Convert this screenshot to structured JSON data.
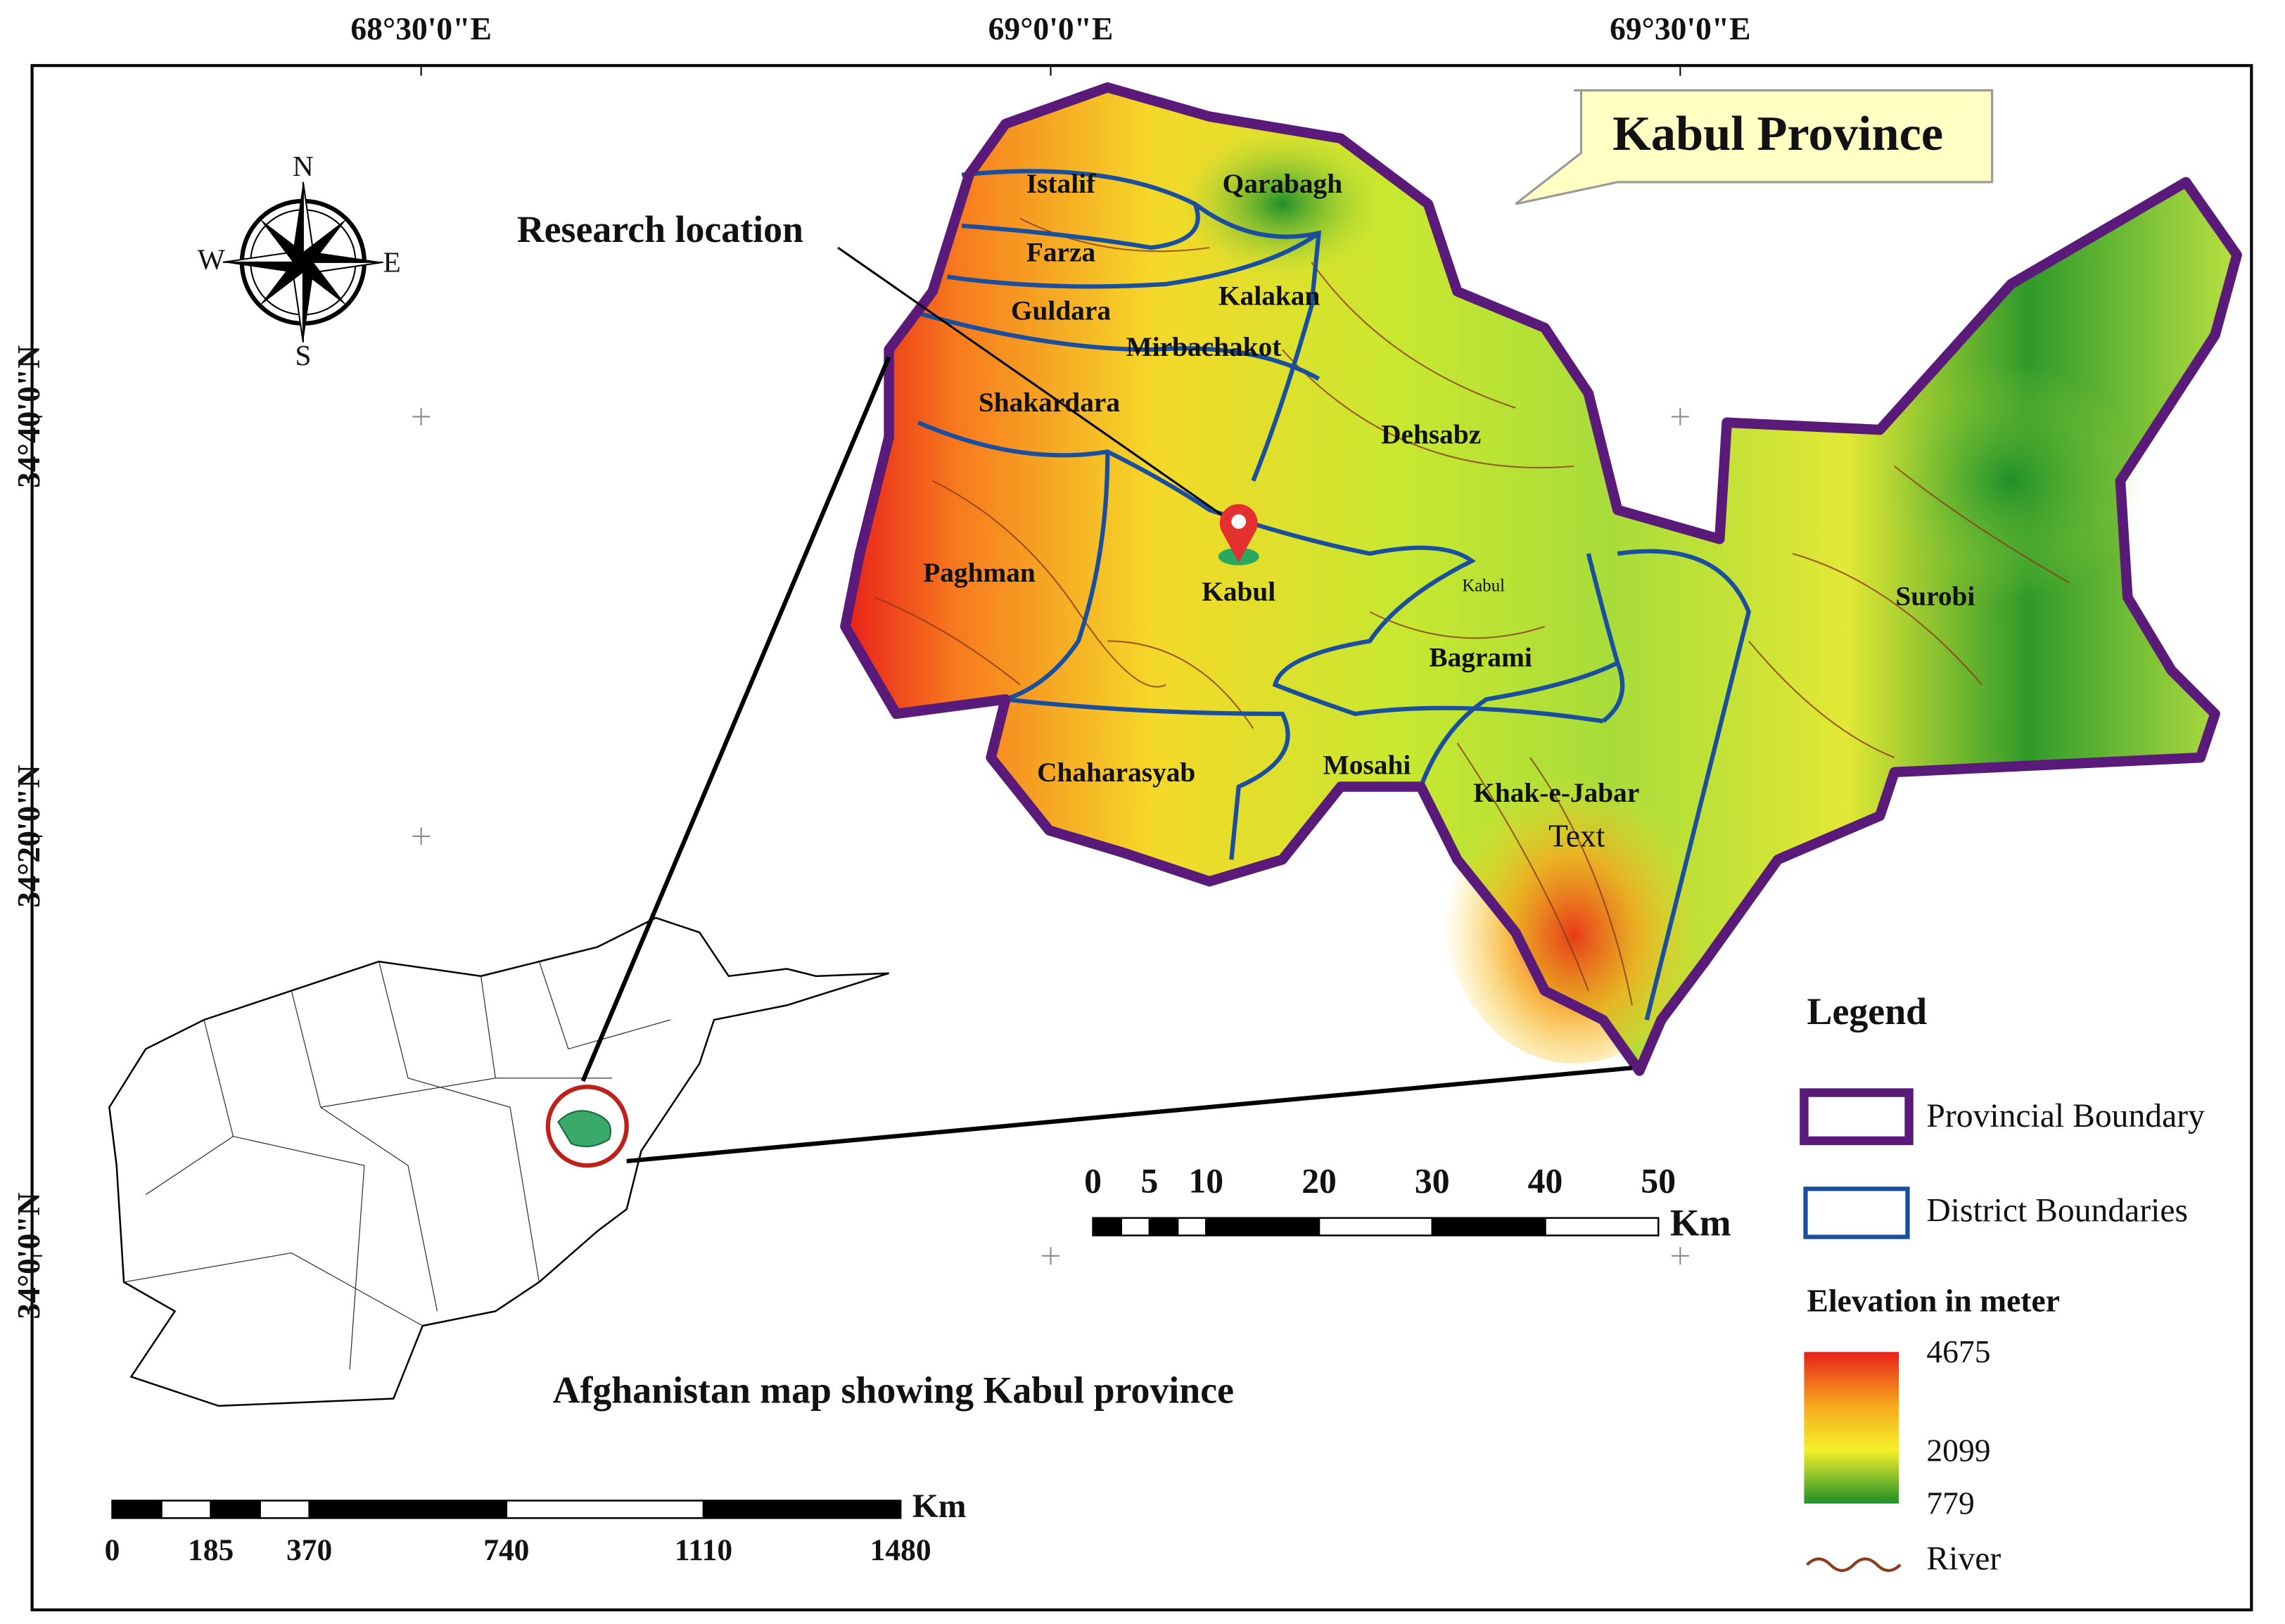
{
  "graticule": {
    "top": [
      "68°30'0\"E",
      "69°0'0\"E",
      "69°30'0\"E"
    ],
    "left": [
      "34°40'0\"N",
      "34°20'0\"N",
      "34°0'0\"N"
    ]
  },
  "compass": {
    "north": "N",
    "south": "S",
    "east": "E",
    "west": "W"
  },
  "title": "Kabul Province",
  "research_label": "Research location",
  "districts": [
    "Istalif",
    "Qarabagh",
    "Farza",
    "Kalakan",
    "Guldara",
    "Mirbachakot",
    "Shakardara",
    "Dehsabz",
    "Paghman",
    "Kabul",
    "Surobi",
    "Bagrami",
    "Chaharasyab",
    "Mosahi",
    "Khak-e-Jabar"
  ],
  "minor_labels": [
    "Kabul",
    "Text"
  ],
  "inset_caption": "Afghanistan map showing Kabul province",
  "scale_province": {
    "ticks": [
      0,
      5,
      10,
      20,
      30,
      40,
      50
    ],
    "unit": "Km"
  },
  "scale_country": {
    "ticks": [
      0,
      185,
      370,
      740,
      1110,
      1480
    ],
    "unit": "Km"
  },
  "legend": {
    "title": "Legend",
    "items": [
      "Provincial Boundary",
      "District Boundaries"
    ],
    "elevation_title": "Elevation in meter",
    "elevation_labels": [
      "4675",
      "2099",
      "779"
    ],
    "river": "River"
  }
}
